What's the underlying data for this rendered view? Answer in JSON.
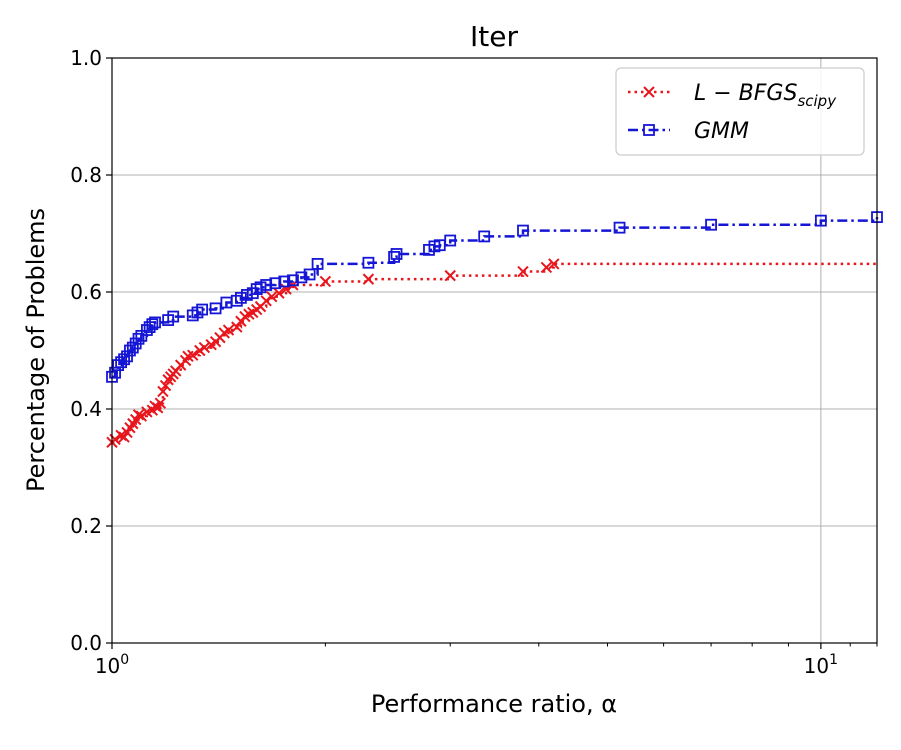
{
  "chart_data": {
    "type": "line",
    "title": "Iter",
    "xlabel": "Performance ratio, α",
    "ylabel": "Percentage of Problems",
    "x_scale": "log",
    "xlim": [
      1,
      12
    ],
    "ylim": [
      0,
      1
    ],
    "x_ticks": [
      {
        "value": 1,
        "base": "10",
        "exp": "0"
      },
      {
        "value": 10,
        "base": "10",
        "exp": "1"
      }
    ],
    "y_ticks": [
      "0.0",
      "0.2",
      "0.4",
      "0.6",
      "0.8",
      "1.0"
    ],
    "grid": true,
    "legend_position": "top-right",
    "series": [
      {
        "name": "L − BFGS",
        "name_subscript": "scipy",
        "color": "#e8161c",
        "line_style": "dotted",
        "marker": "x",
        "x": [
          1.0,
          1.01,
          1.03,
          1.04,
          1.05,
          1.06,
          1.07,
          1.08,
          1.09,
          1.1,
          1.12,
          1.14,
          1.15,
          1.16,
          1.17,
          1.18,
          1.19,
          1.2,
          1.21,
          1.22,
          1.23,
          1.25,
          1.27,
          1.28,
          1.3,
          1.33,
          1.35,
          1.38,
          1.4,
          1.42,
          1.44,
          1.46,
          1.5,
          1.52,
          1.54,
          1.56,
          1.58,
          1.6,
          1.62,
          1.65,
          1.68,
          1.72,
          1.76,
          1.8,
          2.0,
          2.3,
          3.0,
          3.8,
          4.1,
          4.2
        ],
        "y": [
          0.343,
          0.348,
          0.355,
          0.352,
          0.36,
          0.368,
          0.375,
          0.382,
          0.39,
          0.388,
          0.395,
          0.398,
          0.405,
          0.402,
          0.41,
          0.43,
          0.44,
          0.45,
          0.455,
          0.46,
          0.465,
          0.475,
          0.483,
          0.49,
          0.492,
          0.5,
          0.505,
          0.51,
          0.515,
          0.522,
          0.53,
          0.535,
          0.54,
          0.55,
          0.558,
          0.562,
          0.565,
          0.57,
          0.575,
          0.585,
          0.592,
          0.598,
          0.605,
          0.612,
          0.618,
          0.622,
          0.628,
          0.635,
          0.642,
          0.648
        ],
        "tail_to": 12
      },
      {
        "name": "GMM",
        "color": "#1515d6",
        "line_style": "dashdot",
        "marker": "square",
        "x": [
          1.0,
          1.01,
          1.02,
          1.03,
          1.04,
          1.05,
          1.06,
          1.07,
          1.08,
          1.09,
          1.1,
          1.12,
          1.13,
          1.14,
          1.15,
          1.2,
          1.22,
          1.3,
          1.32,
          1.34,
          1.4,
          1.45,
          1.5,
          1.52,
          1.55,
          1.58,
          1.6,
          1.62,
          1.65,
          1.7,
          1.75,
          1.8,
          1.85,
          1.9,
          1.95,
          2.3,
          2.5,
          2.52,
          2.8,
          2.85,
          2.9,
          3.0,
          3.35,
          3.8,
          5.2,
          7.0,
          10.0,
          12.0
        ],
        "y": [
          0.455,
          0.462,
          0.475,
          0.48,
          0.485,
          0.49,
          0.5,
          0.505,
          0.512,
          0.52,
          0.525,
          0.535,
          0.54,
          0.545,
          0.548,
          0.552,
          0.558,
          0.56,
          0.565,
          0.57,
          0.572,
          0.582,
          0.585,
          0.59,
          0.595,
          0.598,
          0.605,
          0.608,
          0.612,
          0.615,
          0.618,
          0.62,
          0.625,
          0.63,
          0.648,
          0.65,
          0.66,
          0.665,
          0.672,
          0.678,
          0.68,
          0.688,
          0.695,
          0.705,
          0.71,
          0.715,
          0.722,
          0.728
        ],
        "tail_to": 12
      }
    ]
  }
}
